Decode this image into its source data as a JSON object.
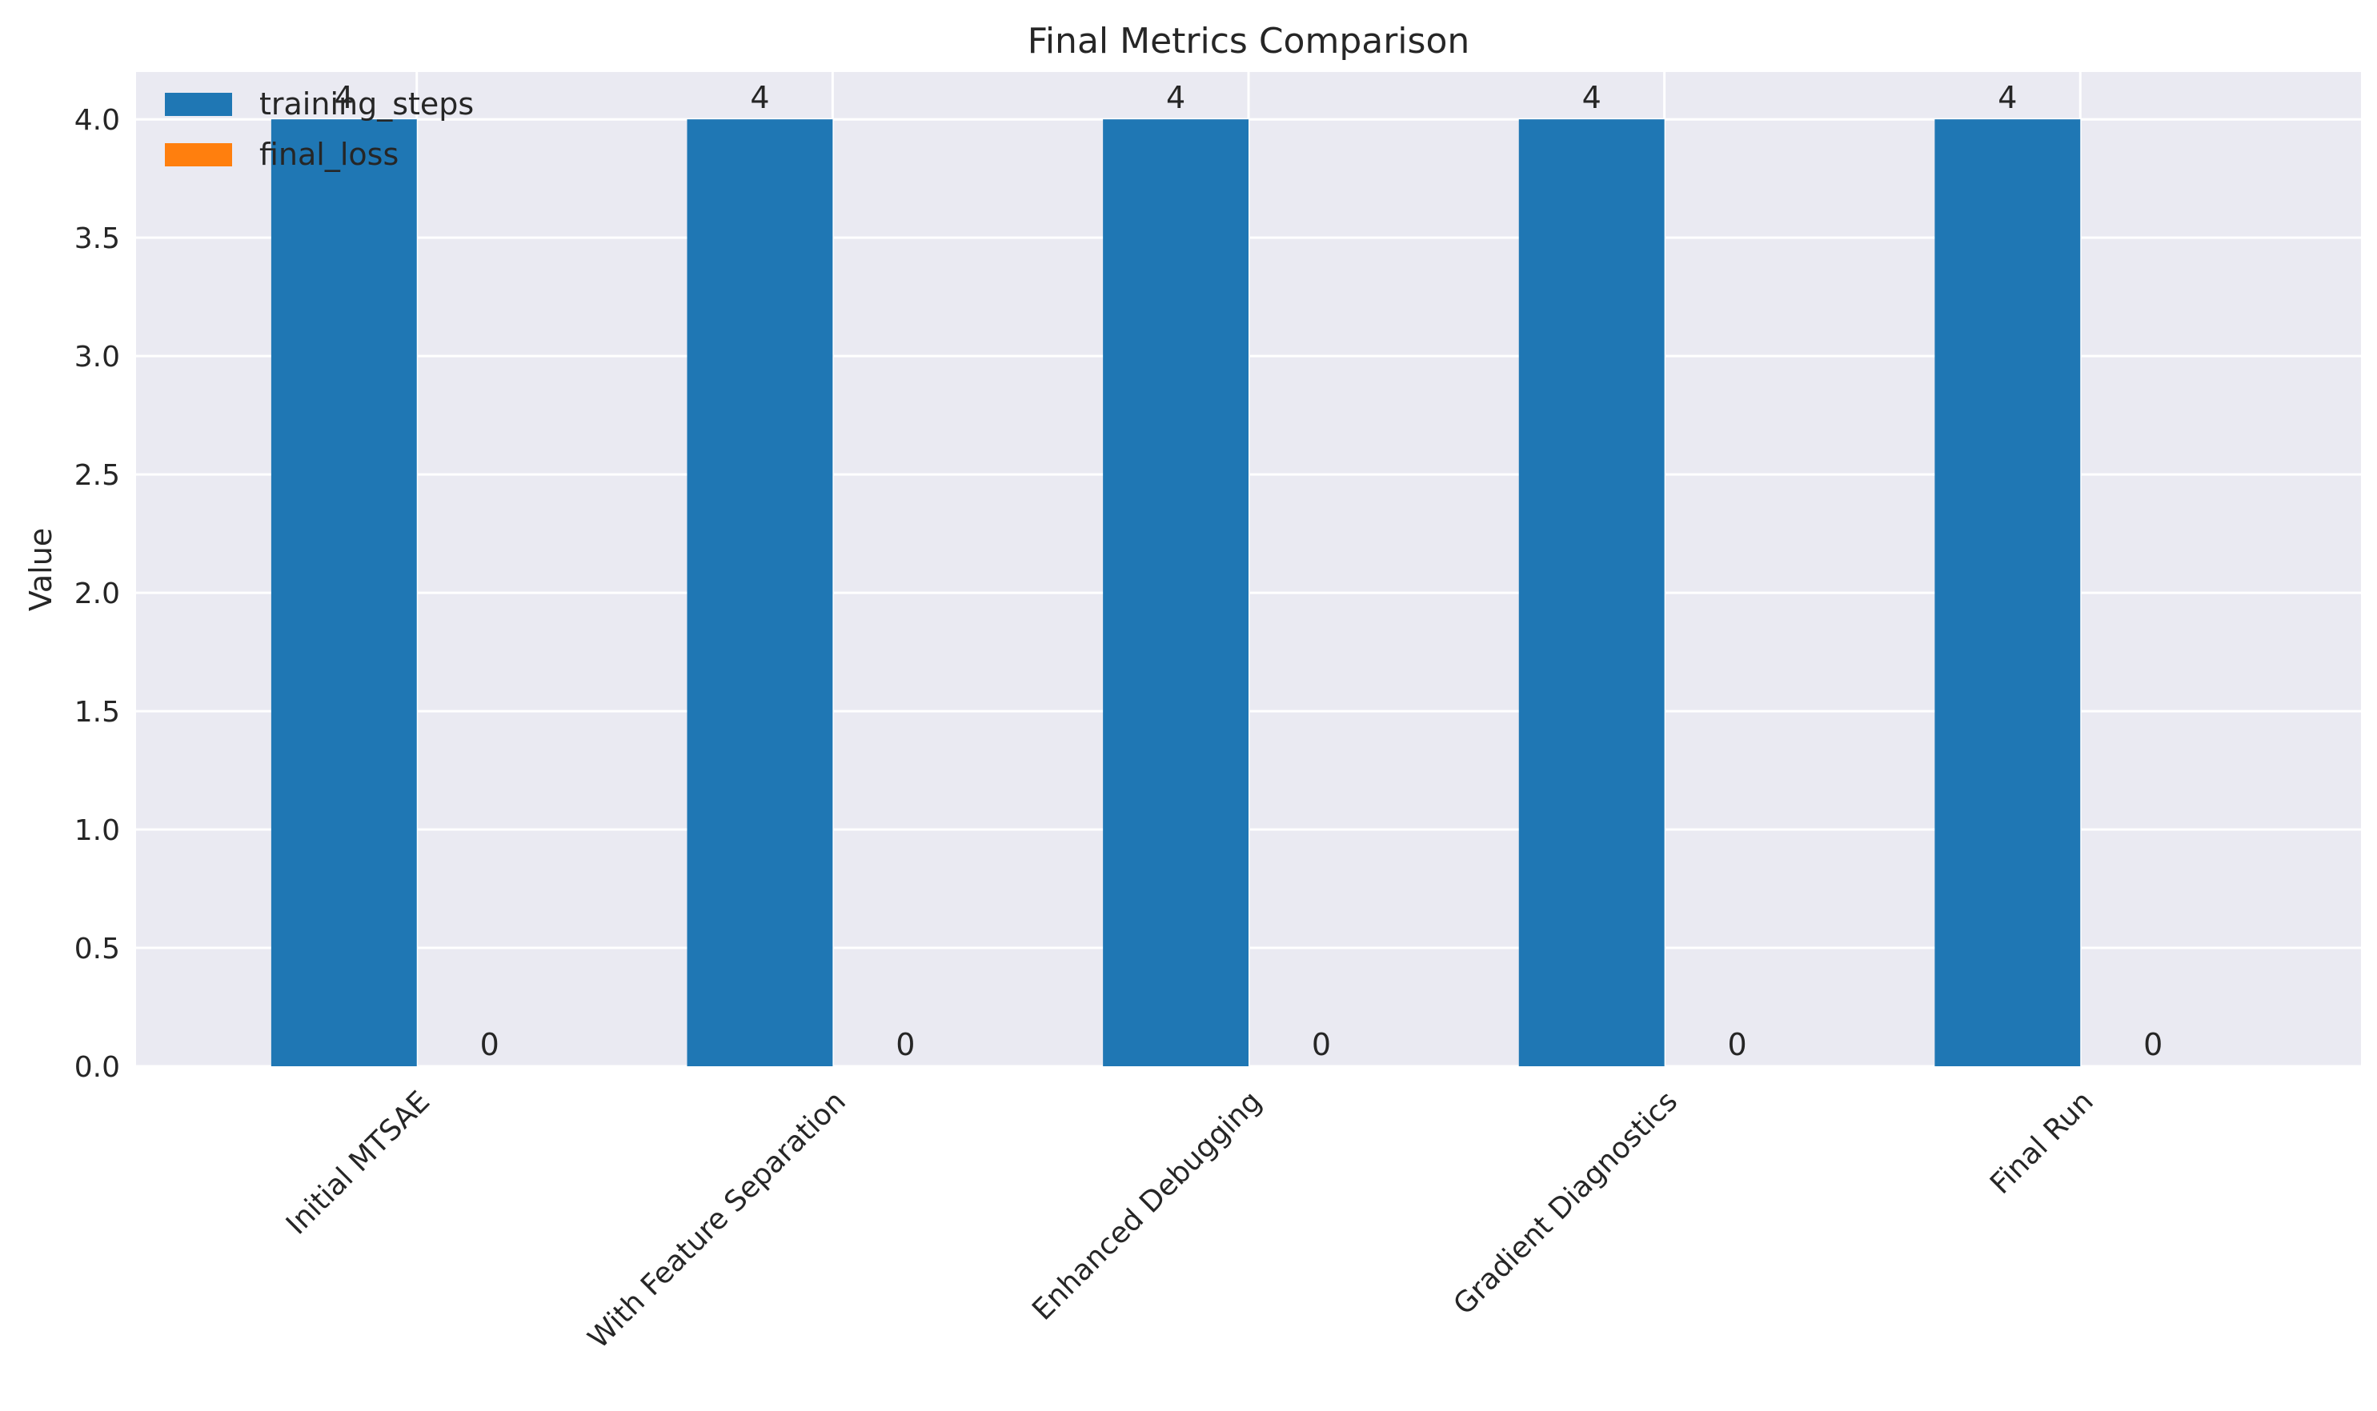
{
  "chart_data": {
    "type": "bar",
    "title": "Final Metrics Comparison",
    "xlabel": "",
    "ylabel": "Value",
    "categories": [
      "Initial MTSAE",
      "With Feature Separation",
      "Enhanced Debugging",
      "Gradient Diagnostics",
      "Final Run"
    ],
    "series": [
      {
        "name": "training_steps",
        "color": "#1f77b4",
        "values": [
          4,
          4,
          4,
          4,
          4
        ],
        "labels": [
          "4",
          "4",
          "4",
          "4",
          "4"
        ]
      },
      {
        "name": "final_loss",
        "color": "#ff7f0e",
        "values": [
          0,
          0,
          0,
          0,
          0
        ],
        "labels": [
          "0",
          "0",
          "0",
          "0",
          "0"
        ]
      }
    ],
    "ylim": [
      0,
      4.2
    ],
    "yticks": [
      0.0,
      0.5,
      1.0,
      1.5,
      2.0,
      2.5,
      3.0,
      3.5,
      4.0
    ],
    "ytick_labels": [
      "0.0",
      "0.5",
      "1.0",
      "1.5",
      "2.0",
      "2.5",
      "3.0",
      "3.5",
      "4.0"
    ],
    "grid": true,
    "legend_position": "top-left",
    "background_color": "#eaeaf2",
    "grid_color": "#ffffff"
  }
}
